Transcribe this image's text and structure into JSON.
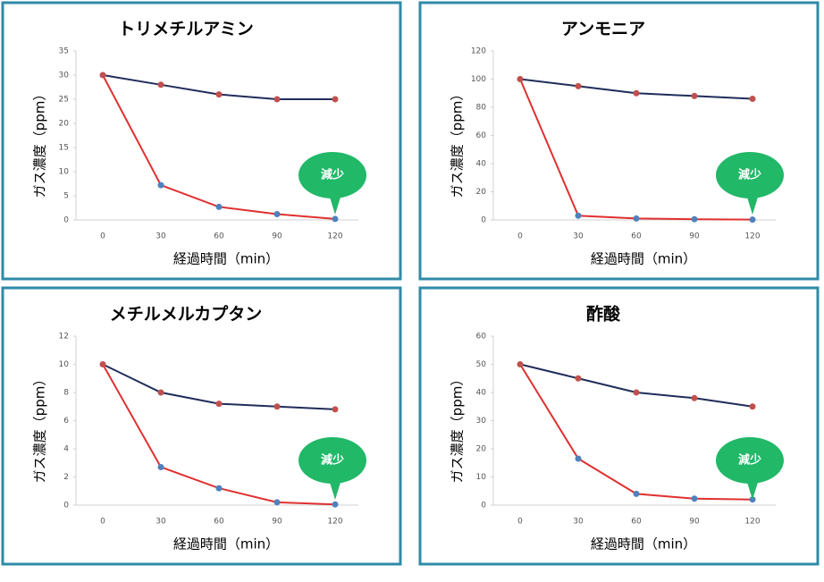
{
  "chart_data": [
    {
      "type": "line",
      "title": "トリメチルアミン",
      "x_label": "経過時間（min）",
      "y_label": "ガス濃度（ppm）",
      "categories": [
        "0",
        "30",
        "60",
        "90",
        "120"
      ],
      "ylim": [
        0,
        35
      ],
      "yticks": [
        0,
        5,
        10,
        15,
        20,
        25,
        30,
        35
      ],
      "grid": false,
      "series": [
        {
          "color": "#1f2d5a",
          "marker_color": "#c0504d",
          "values": [
            30,
            28,
            26,
            25,
            25
          ]
        },
        {
          "color": "#e03030",
          "marker_color": "#4f81bd",
          "values": [
            30,
            7.2,
            2.7,
            1.2,
            0.2
          ]
        }
      ],
      "annotation": "減少"
    },
    {
      "type": "line",
      "title": "アンモニア",
      "x_label": "経過時間（min）",
      "y_label": "ガス濃度（ppm）",
      "categories": [
        "0",
        "30",
        "60",
        "90",
        "120"
      ],
      "ylim": [
        0,
        120
      ],
      "yticks": [
        0,
        20,
        40,
        60,
        80,
        100,
        120
      ],
      "grid": false,
      "series": [
        {
          "color": "#1f2d5a",
          "marker_color": "#c0504d",
          "values": [
            100,
            95,
            90,
            88,
            86
          ]
        },
        {
          "color": "#e03030",
          "marker_color": "#4f81bd",
          "values": [
            100,
            3,
            1,
            0.5,
            0.2
          ]
        }
      ],
      "annotation": "減少"
    },
    {
      "type": "line",
      "title": "メチルメルカプタン",
      "x_label": "経過時間（min）",
      "y_label": "ガス濃度（ppm）",
      "categories": [
        "0",
        "30",
        "60",
        "90",
        "120"
      ],
      "ylim": [
        0,
        12
      ],
      "yticks": [
        0,
        2,
        4,
        6,
        8,
        10,
        12
      ],
      "grid": false,
      "series": [
        {
          "color": "#1f2d5a",
          "marker_color": "#c0504d",
          "values": [
            10,
            8,
            7.2,
            7,
            6.8
          ]
        },
        {
          "color": "#e03030",
          "marker_color": "#4f81bd",
          "values": [
            10,
            2.7,
            1.2,
            0.2,
            0.05
          ]
        }
      ],
      "annotation": "減少"
    },
    {
      "type": "line",
      "title": "酢酸",
      "x_label": "経過時間（min）",
      "y_label": "ガス濃度（ppm）",
      "categories": [
        "0",
        "30",
        "60",
        "90",
        "120"
      ],
      "ylim": [
        0,
        60
      ],
      "yticks": [
        0,
        10,
        20,
        30,
        40,
        50,
        60
      ],
      "grid": false,
      "series": [
        {
          "color": "#1f2d5a",
          "marker_color": "#c0504d",
          "values": [
            50,
            45,
            40,
            38,
            35
          ]
        },
        {
          "color": "#e03030",
          "marker_color": "#4f81bd",
          "values": [
            50,
            16.5,
            4,
            2.3,
            2
          ]
        }
      ],
      "annotation": "減少"
    }
  ]
}
